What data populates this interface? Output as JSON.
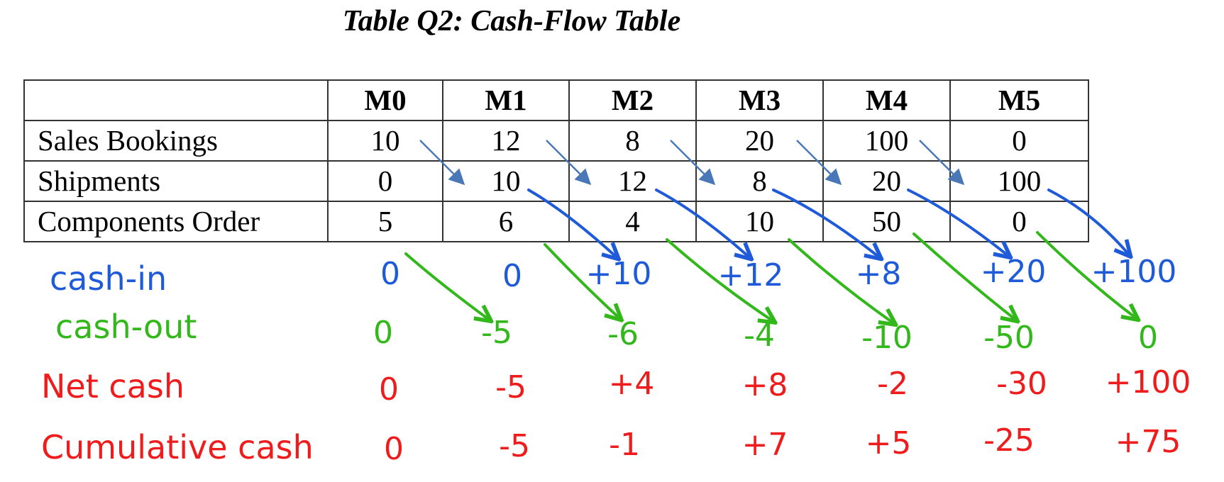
{
  "title": "Table Q2: Cash-Flow Table",
  "table": {
    "headers": [
      "",
      "M0",
      "M1",
      "M2",
      "M3",
      "M4",
      "M5"
    ],
    "rows": [
      {
        "label": "Sales Bookings",
        "values": [
          "10",
          "12",
          "8",
          "20",
          "100",
          "0"
        ]
      },
      {
        "label": "Shipments",
        "values": [
          "0",
          "10",
          "12",
          "8",
          "20",
          "100"
        ]
      },
      {
        "label": "Components Order",
        "values": [
          "5",
          "6",
          "4",
          "10",
          "50",
          "0"
        ]
      }
    ]
  },
  "handwritten": {
    "cash_in": {
      "label": "cash-in",
      "values": [
        "0",
        "0",
        "+10",
        "+12",
        "+8",
        "+20",
        "+100"
      ]
    },
    "cash_out": {
      "label": "cash-out",
      "values": [
        "0",
        "-5",
        "-6",
        "-4",
        "-10",
        "-50",
        "0"
      ]
    },
    "net_cash": {
      "label": "Net cash",
      "values": [
        "0",
        "-5",
        "+4",
        "+8",
        "-2",
        "-30",
        "+100"
      ]
    },
    "cumulative_cash": {
      "label": "Cumulative cash",
      "values": [
        "0",
        "-5",
        "-1",
        "+7",
        "+5",
        "-25",
        "+75"
      ]
    }
  },
  "colors": {
    "cash_in": "#1f5bd8",
    "cash_out": "#33b81c",
    "net_cash": "#ee1c1c",
    "cumulative_cash": "#ee1c1c",
    "booking_arrow": "#4a78b6"
  }
}
